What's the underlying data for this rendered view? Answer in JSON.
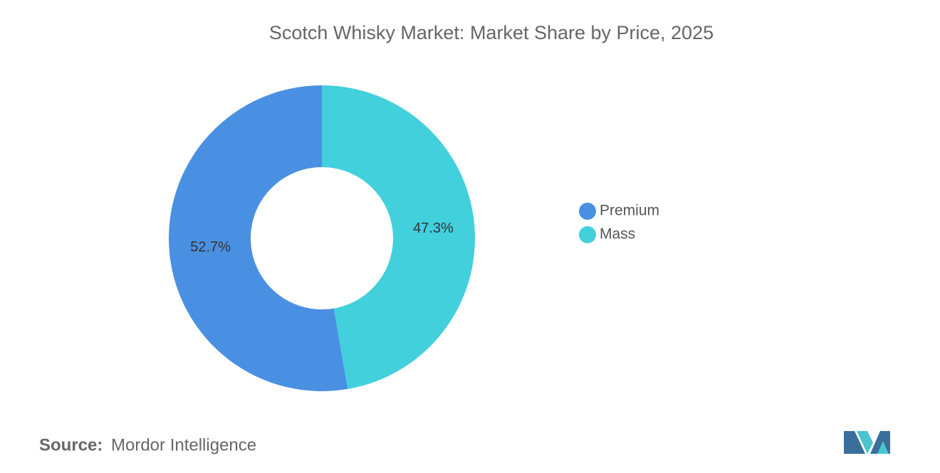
{
  "chart_data": {
    "type": "donut",
    "title": "Scotch Whisky Market: Market Share by Price, 2025",
    "categories": [
      "Premium",
      "Mass"
    ],
    "values": [
      52.7,
      47.3
    ],
    "value_labels": [
      "52.7%",
      "47.3%"
    ],
    "colors": [
      "#4a90e2",
      "#41d0dc"
    ],
    "legend_position": "right"
  },
  "footer": {
    "source_label": "Source:",
    "source": "Mordor Intelligence"
  }
}
